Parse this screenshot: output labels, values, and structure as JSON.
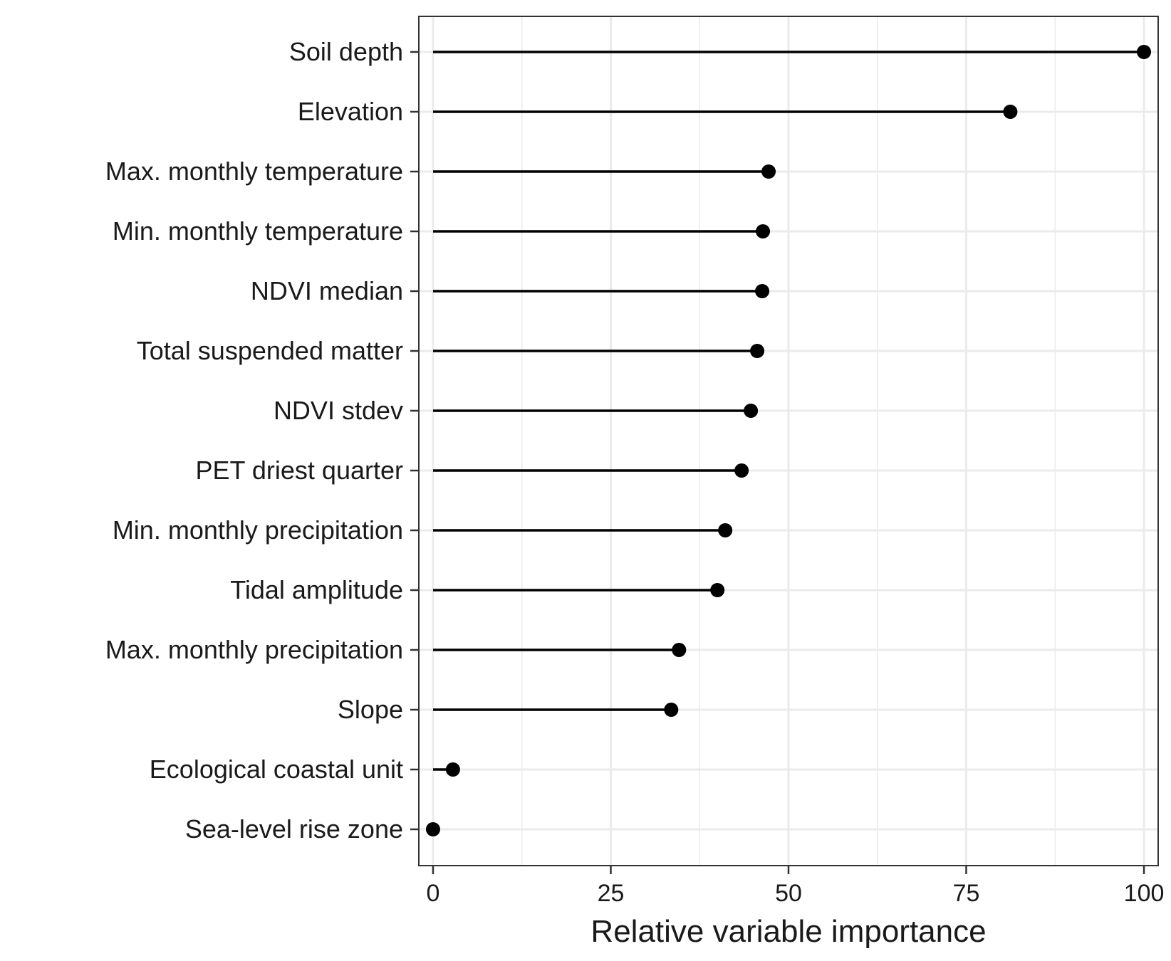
{
  "chart_data": {
    "type": "lollipop",
    "xlabel": "Relative variable importance",
    "ylabel": "",
    "xlim": [
      -2,
      102
    ],
    "xticks": [
      0,
      25,
      50,
      75,
      100
    ],
    "grid": true,
    "legend": "none",
    "colors": {
      "mark": "#000000",
      "grid": "#ebebeb",
      "panel_border": "#333333"
    },
    "categories": [
      "Soil depth",
      "Elevation",
      "Max. monthly temperature",
      "Min. monthly temperature",
      "NDVI median",
      "Total suspended matter",
      "NDVI stdev",
      "PET driest quarter",
      "Min. monthly precipitation",
      "Tidal amplitude",
      "Max. monthly precipitation",
      "Slope",
      "Ecological coastal unit",
      "Sea-level rise zone"
    ],
    "values": [
      100,
      81.2,
      47.2,
      46.4,
      46.3,
      45.6,
      44.7,
      43.4,
      41.1,
      40.0,
      34.6,
      33.5,
      2.8,
      0
    ]
  }
}
